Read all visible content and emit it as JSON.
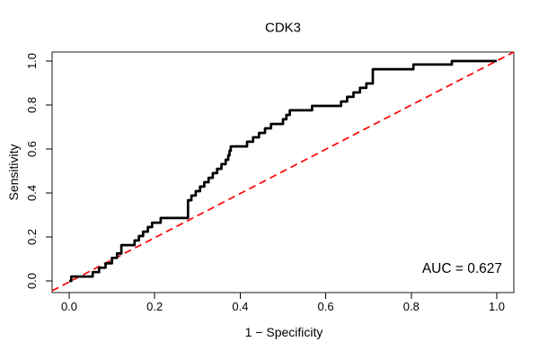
{
  "chart_data": {
    "type": "line",
    "subtype": "roc-curve-step",
    "title": "CDK3",
    "xlabel": "1 − Specificity",
    "ylabel": "Sensitivity",
    "xlim": [
      0,
      1
    ],
    "ylim": [
      0,
      1
    ],
    "grid": false,
    "x_tick_labels": [
      "0.0",
      "0.2",
      "0.4",
      "0.6",
      "0.8",
      "1.0"
    ],
    "y_tick_labels": [
      "0.0",
      "0.2",
      "0.4",
      "0.6",
      "0.8",
      "1.0"
    ],
    "auc": 0.627,
    "series": [
      {
        "name": "ROC curve",
        "style": "step-solid",
        "color": "#000000",
        "line_width": 2.7,
        "points": [
          [
            0.0,
            0.0
          ],
          [
            0.005,
            0.0
          ],
          [
            0.005,
            0.02
          ],
          [
            0.055,
            0.02
          ],
          [
            0.055,
            0.04
          ],
          [
            0.07,
            0.04
          ],
          [
            0.07,
            0.06
          ],
          [
            0.085,
            0.06
          ],
          [
            0.085,
            0.08
          ],
          [
            0.1,
            0.08
          ],
          [
            0.1,
            0.105
          ],
          [
            0.112,
            0.105
          ],
          [
            0.112,
            0.125
          ],
          [
            0.122,
            0.125
          ],
          [
            0.122,
            0.163
          ],
          [
            0.153,
            0.163
          ],
          [
            0.153,
            0.184
          ],
          [
            0.163,
            0.184
          ],
          [
            0.163,
            0.204
          ],
          [
            0.173,
            0.204
          ],
          [
            0.173,
            0.224
          ],
          [
            0.184,
            0.224
          ],
          [
            0.184,
            0.245
          ],
          [
            0.194,
            0.245
          ],
          [
            0.194,
            0.265
          ],
          [
            0.214,
            0.265
          ],
          [
            0.214,
            0.286
          ],
          [
            0.278,
            0.286
          ],
          [
            0.278,
            0.367
          ],
          [
            0.286,
            0.367
          ],
          [
            0.286,
            0.388
          ],
          [
            0.296,
            0.388
          ],
          [
            0.296,
            0.408
          ],
          [
            0.306,
            0.408
          ],
          [
            0.306,
            0.429
          ],
          [
            0.316,
            0.429
          ],
          [
            0.316,
            0.449
          ],
          [
            0.326,
            0.449
          ],
          [
            0.326,
            0.469
          ],
          [
            0.336,
            0.469
          ],
          [
            0.336,
            0.49
          ],
          [
            0.346,
            0.49
          ],
          [
            0.346,
            0.51
          ],
          [
            0.356,
            0.51
          ],
          [
            0.356,
            0.531
          ],
          [
            0.366,
            0.531
          ],
          [
            0.366,
            0.551
          ],
          [
            0.372,
            0.551
          ],
          [
            0.372,
            0.571
          ],
          [
            0.375,
            0.571
          ],
          [
            0.375,
            0.592
          ],
          [
            0.378,
            0.592
          ],
          [
            0.378,
            0.612
          ],
          [
            0.416,
            0.612
          ],
          [
            0.416,
            0.633
          ],
          [
            0.43,
            0.633
          ],
          [
            0.43,
            0.653
          ],
          [
            0.444,
            0.653
          ],
          [
            0.444,
            0.673
          ],
          [
            0.458,
            0.673
          ],
          [
            0.458,
            0.694
          ],
          [
            0.472,
            0.694
          ],
          [
            0.472,
            0.714
          ],
          [
            0.5,
            0.714
          ],
          [
            0.5,
            0.735
          ],
          [
            0.508,
            0.735
          ],
          [
            0.508,
            0.755
          ],
          [
            0.516,
            0.755
          ],
          [
            0.516,
            0.776
          ],
          [
            0.568,
            0.776
          ],
          [
            0.568,
            0.796
          ],
          [
            0.636,
            0.796
          ],
          [
            0.636,
            0.816
          ],
          [
            0.65,
            0.816
          ],
          [
            0.65,
            0.837
          ],
          [
            0.665,
            0.837
          ],
          [
            0.665,
            0.857
          ],
          [
            0.68,
            0.857
          ],
          [
            0.68,
            0.878
          ],
          [
            0.695,
            0.878
          ],
          [
            0.695,
            0.898
          ],
          [
            0.71,
            0.898
          ],
          [
            0.71,
            0.963
          ],
          [
            0.805,
            0.963
          ],
          [
            0.805,
            0.984
          ],
          [
            0.895,
            0.984
          ],
          [
            0.895,
            1.0
          ],
          [
            1.0,
            1.0
          ]
        ]
      },
      {
        "name": "chance diagonal",
        "style": "dashed",
        "color": "#FF0000",
        "line_width": 1.7,
        "points": [
          [
            0,
            0
          ],
          [
            1,
            1
          ]
        ]
      }
    ],
    "annotations": [
      {
        "text": "AUC = 0.627",
        "position": "bottom-right"
      }
    ]
  }
}
